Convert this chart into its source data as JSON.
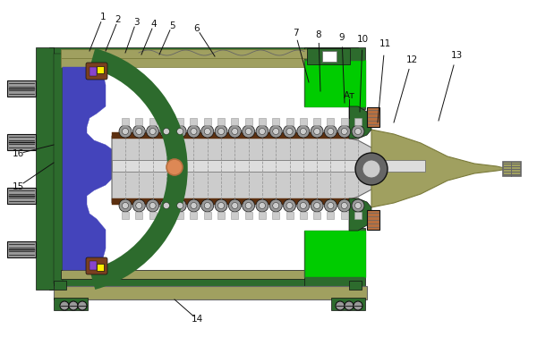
{
  "bg_color": "#ffffff",
  "green_dark": "#2d6b2d",
  "green_bright": "#00cc00",
  "blue_fill": "#4444bb",
  "gray_light": "#cccccc",
  "gray_mid": "#999999",
  "gray_dark": "#666666",
  "brown_dark": "#5c3010",
  "olive": "#7a7a3a",
  "olive_light": "#a0a060",
  "yellow": "#ffee00",
  "orange": "#dd8855",
  "copper": "#b87040",
  "black": "#111111",
  "white": "#ffffff",
  "label_fontsize": 7.5
}
